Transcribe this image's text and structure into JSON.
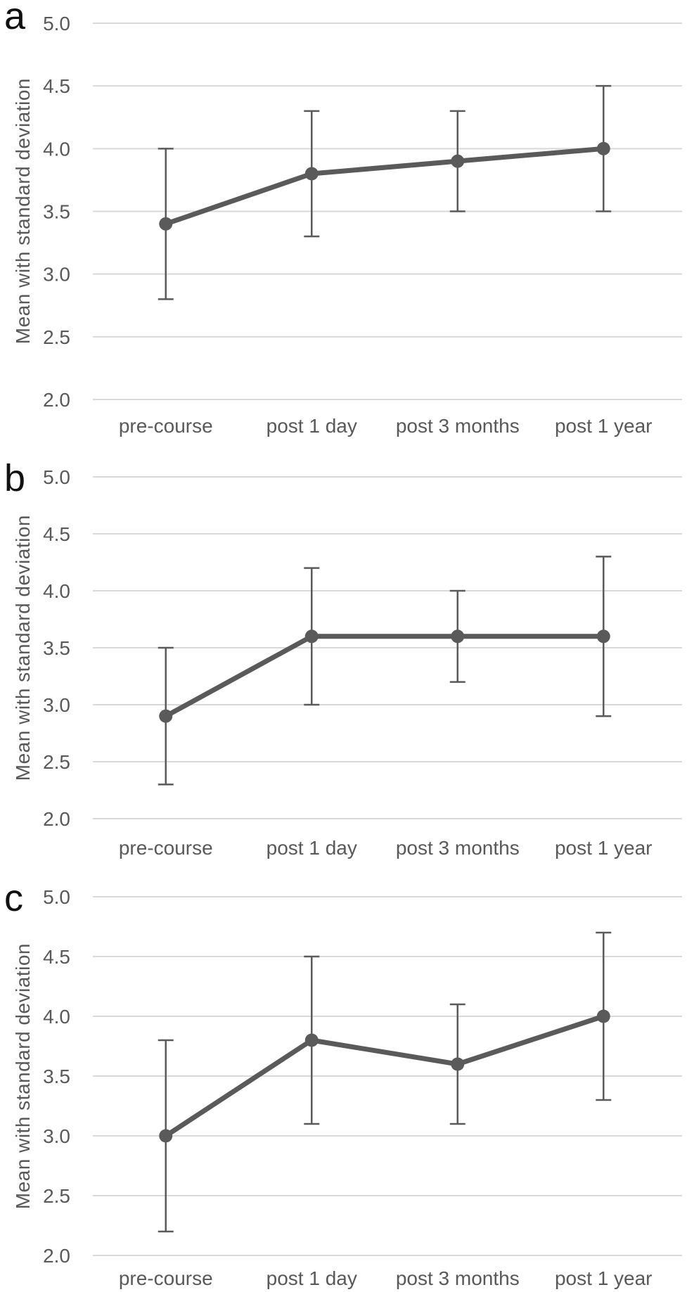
{
  "figure": {
    "y_axis_title": "Mean with standard deviation",
    "y_ticks": [
      "5.0",
      "4.5",
      "4.0",
      "3.5",
      "3.0",
      "2.5",
      "2.0"
    ],
    "categories": [
      "pre-course",
      "post 1 day",
      "post 3 months",
      "post 1 year"
    ],
    "panel_labels": [
      "a",
      "b",
      "c"
    ],
    "colors": {
      "series": "#5a5a5a",
      "error_bar": "#5a5a5a",
      "grid": "#d9d9d9",
      "text": "#595959",
      "panel_label": "#111111"
    }
  },
  "chart_data": [
    {
      "type": "line",
      "panel_label": "a",
      "title": "",
      "xlabel": "",
      "ylabel": "Mean with standard deviation",
      "ylim": [
        2.0,
        5.0
      ],
      "y_tick_step": 0.5,
      "grid": true,
      "legend": false,
      "categories": [
        "pre-course",
        "post 1 day",
        "post 3 months",
        "post 1 year"
      ],
      "series": [
        {
          "name": "mean",
          "values": [
            3.4,
            3.8,
            3.9,
            4.0
          ]
        }
      ],
      "error_low": [
        2.8,
        3.3,
        3.5,
        3.5
      ],
      "error_high": [
        4.0,
        4.3,
        4.3,
        4.5
      ]
    },
    {
      "type": "line",
      "panel_label": "b",
      "title": "",
      "xlabel": "",
      "ylabel": "Mean with standard deviation",
      "ylim": [
        2.0,
        5.0
      ],
      "y_tick_step": 0.5,
      "grid": true,
      "legend": false,
      "categories": [
        "pre-course",
        "post 1 day",
        "post 3 months",
        "post 1 year"
      ],
      "series": [
        {
          "name": "mean",
          "values": [
            2.9,
            3.6,
            3.6,
            3.6
          ]
        }
      ],
      "error_low": [
        2.3,
        3.0,
        3.2,
        2.9
      ],
      "error_high": [
        3.5,
        4.2,
        4.0,
        4.3
      ]
    },
    {
      "type": "line",
      "panel_label": "c",
      "title": "",
      "xlabel": "",
      "ylabel": "Mean with standard deviation",
      "ylim": [
        2.0,
        5.0
      ],
      "y_tick_step": 0.5,
      "grid": true,
      "legend": false,
      "categories": [
        "pre-course",
        "post 1 day",
        "post 3 months",
        "post 1 year"
      ],
      "series": [
        {
          "name": "mean",
          "values": [
            3.0,
            3.8,
            3.6,
            4.0
          ]
        }
      ],
      "error_low": [
        2.2,
        3.1,
        3.1,
        3.3
      ],
      "error_high": [
        3.8,
        4.5,
        4.1,
        4.7
      ]
    }
  ]
}
